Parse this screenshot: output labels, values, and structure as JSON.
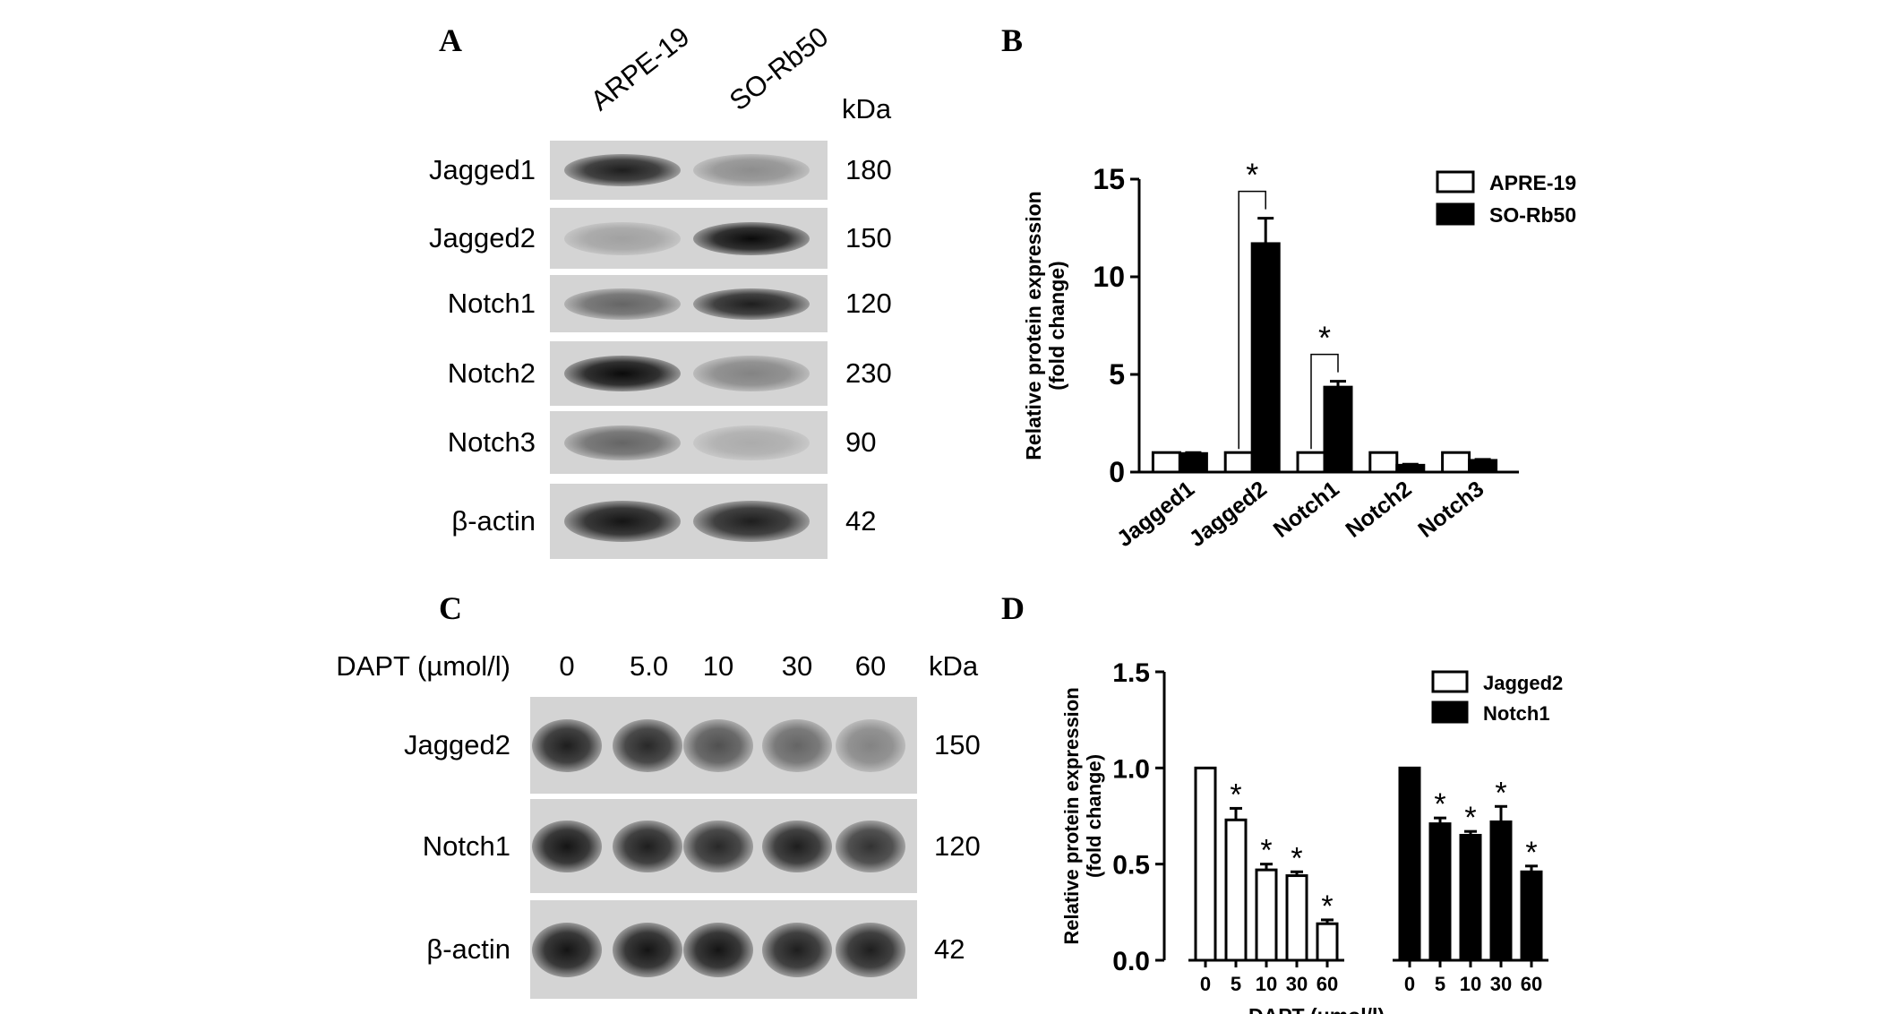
{
  "panels": {
    "a": "A",
    "b": "B",
    "c": "C",
    "d": "D"
  },
  "blot_a": {
    "lanes": [
      "ARPE-19",
      "SO-Rb50"
    ],
    "kda_header": "kDa",
    "rows": [
      {
        "label": "Jagged1",
        "kda": "180",
        "intensity": [
          0.9,
          0.35
        ]
      },
      {
        "label": "Jagged2",
        "kda": "150",
        "intensity": [
          0.25,
          1.0
        ]
      },
      {
        "label": "Notch1",
        "kda": "120",
        "intensity": [
          0.55,
          0.9
        ]
      },
      {
        "label": "Notch2",
        "kda": "230",
        "intensity": [
          1.0,
          0.4
        ]
      },
      {
        "label": "Notch3",
        "kda": "90",
        "intensity": [
          0.55,
          0.2
        ]
      },
      {
        "label": "β-actin",
        "kda": "42",
        "intensity": [
          0.95,
          0.9
        ]
      }
    ]
  },
  "blot_c": {
    "treatment_label": "DAPT (µmol/l)",
    "doses": [
      "0",
      "5.0",
      "10",
      "30",
      "60"
    ],
    "kda_header": "kDa",
    "rows": [
      {
        "label": "Jagged2",
        "kda": "150",
        "intensity": [
          0.9,
          0.85,
          0.65,
          0.55,
          0.4
        ]
      },
      {
        "label": "Notch1",
        "kda": "120",
        "intensity": [
          0.95,
          0.9,
          0.85,
          0.9,
          0.8
        ]
      },
      {
        "label": "β-actin",
        "kda": "42",
        "intensity": [
          0.95,
          0.95,
          0.95,
          0.9,
          0.9
        ]
      }
    ]
  },
  "chart_data": [
    {
      "type": "bar",
      "panel": "B",
      "categories": [
        "Jagged1",
        "Jagged2",
        "Notch1",
        "Notch2",
        "Notch3"
      ],
      "series": [
        {
          "name": "APRE-19",
          "values": [
            1.0,
            1.0,
            1.0,
            1.0,
            1.0
          ],
          "errors": [
            0,
            0,
            0,
            0,
            0
          ],
          "fill": "#ffffff"
        },
        {
          "name": "SO-Rb50",
          "values": [
            0.95,
            11.7,
            4.35,
            0.35,
            0.6
          ],
          "errors": [
            0.05,
            1.3,
            0.3,
            0.05,
            0.05
          ],
          "fill": "#000000"
        }
      ],
      "significance": [
        {
          "category": "Jagged2",
          "label": "*"
        },
        {
          "category": "Notch1",
          "label": "*"
        }
      ],
      "ylabel": "Relative protein expression\n(fold change)",
      "ylim": [
        0,
        15
      ],
      "yticks": [
        "0",
        "5",
        "10",
        "15"
      ],
      "legend": "top-right",
      "grid": false
    },
    {
      "type": "bar",
      "panel": "D",
      "groups": [
        {
          "name": "Jagged2",
          "fill": "#ffffff",
          "x": [
            "0",
            "5",
            "10",
            "30",
            "60"
          ],
          "values": [
            1.0,
            0.73,
            0.47,
            0.44,
            0.19
          ],
          "errors": [
            0,
            0.06,
            0.03,
            0.02,
            0.02
          ],
          "sig": [
            "",
            "*",
            "*",
            "*",
            "*"
          ]
        },
        {
          "name": "Notch1",
          "fill": "#000000",
          "x": [
            "0",
            "5",
            "10",
            "30",
            "60"
          ],
          "values": [
            1.0,
            0.71,
            0.65,
            0.72,
            0.46
          ],
          "errors": [
            0,
            0.03,
            0.02,
            0.08,
            0.03
          ],
          "sig": [
            "",
            "*",
            "*",
            "*",
            "*"
          ]
        }
      ],
      "ylabel": "Relative protein expression\n(fold change)",
      "xlabel": "DAPT (μmol/l)",
      "ylim": [
        0,
        1.5
      ],
      "yticks": [
        "0.0",
        "0.5",
        "1.0",
        "1.5"
      ],
      "legend": "top-right",
      "grid": false
    }
  ]
}
